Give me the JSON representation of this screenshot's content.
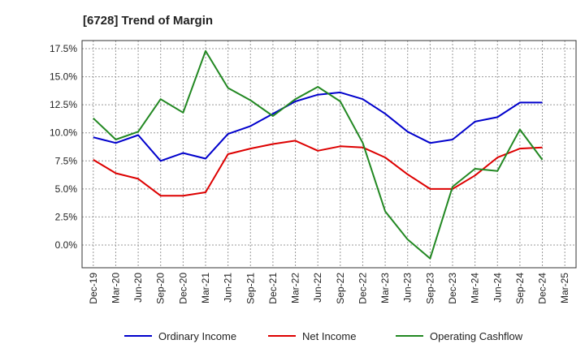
{
  "title": "[6728]  Trend of Margin",
  "chart_data": {
    "type": "line",
    "title": "[6728]  Trend of Margin",
    "xlabel": "",
    "ylabel": "",
    "categories": [
      "Dec-19",
      "Mar-20",
      "Jun-20",
      "Sep-20",
      "Dec-20",
      "Mar-21",
      "Jun-21",
      "Sep-21",
      "Dec-21",
      "Mar-22",
      "Jun-22",
      "Sep-22",
      "Dec-22",
      "Mar-23",
      "Jun-23",
      "Sep-23",
      "Dec-23",
      "Mar-24",
      "Jun-24",
      "Sep-24",
      "Dec-24",
      "Mar-25"
    ],
    "ylim": [
      -2.0,
      17.5
    ],
    "yticks": [
      17.5,
      15.0,
      12.5,
      10.0,
      7.5,
      5.0,
      2.5,
      0.0
    ],
    "ytick_labels": [
      "17.5%",
      "15.0%",
      "12.5%",
      "10.0%",
      "7.5%",
      "5.0%",
      "2.5%",
      "0.0%"
    ],
    "grid": true,
    "legend_position": "bottom",
    "series": [
      {
        "name": "Ordinary Income",
        "color": "#0000cc",
        "values": [
          9.6,
          9.1,
          9.8,
          7.5,
          8.2,
          7.7,
          9.9,
          10.6,
          11.7,
          12.8,
          13.4,
          13.6,
          13.0,
          11.7,
          10.1,
          9.1,
          9.4,
          11.0,
          11.4,
          12.7,
          12.7,
          null
        ]
      },
      {
        "name": "Net Income",
        "color": "#dd0000",
        "values": [
          7.6,
          6.4,
          5.9,
          4.4,
          4.4,
          4.7,
          8.1,
          8.6,
          9.0,
          9.3,
          8.4,
          8.8,
          8.7,
          7.8,
          6.3,
          5.0,
          5.0,
          6.2,
          7.8,
          8.6,
          8.7,
          null
        ]
      },
      {
        "name": "Operating Cashflow",
        "color": "#228822",
        "values": [
          11.3,
          9.4,
          10.1,
          13.0,
          11.8,
          17.3,
          14.0,
          12.9,
          11.5,
          13.0,
          14.1,
          12.8,
          9.1,
          3.0,
          0.5,
          -1.2,
          5.2,
          6.8,
          6.6,
          10.3,
          7.6,
          null
        ]
      }
    ]
  }
}
